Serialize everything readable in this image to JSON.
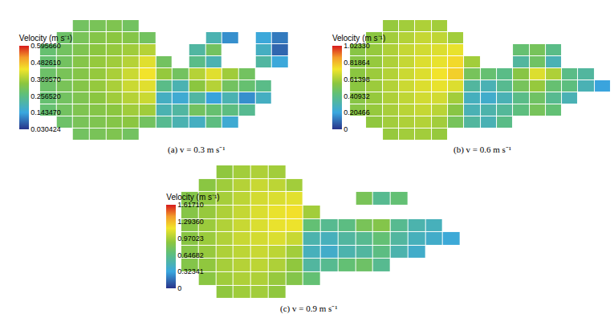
{
  "chart_data": [
    {
      "type": "heatmap",
      "caption": "(a) v = 0.3 m s⁻¹",
      "colorbar_title": "Velocity (m s⁻¹)",
      "zlim": [
        0.030424,
        0.59566
      ],
      "zticks": [
        0.030424,
        {
          "value": 0.14347,
          "label": "0.143470"
        },
        {
          "value": 0.25652,
          "label": "0.256520"
        },
        {
          "value": 0.36957,
          "label": "0.369570"
        },
        {
          "value": 0.48261,
          "label": "0.482610"
        },
        {
          "value": 0.59566,
          "label": "0.595660"
        }
      ],
      "z": [
        [
          null,
          null,
          0.3,
          0.31,
          0.32,
          0.3,
          null,
          null,
          null,
          null,
          null,
          null,
          null,
          null,
          null,
          null
        ],
        [
          null,
          0.29,
          0.31,
          0.33,
          0.34,
          0.33,
          0.3,
          null,
          null,
          null,
          0.2,
          0.12,
          null,
          0.15,
          0.1,
          null
        ],
        [
          0.28,
          0.3,
          0.32,
          0.34,
          0.35,
          0.36,
          0.38,
          null,
          null,
          0.22,
          0.3,
          null,
          null,
          0.18,
          0.08,
          null
        ],
        [
          0.28,
          0.3,
          0.33,
          0.35,
          0.36,
          0.38,
          0.42,
          0.3,
          null,
          0.25,
          0.2,
          null,
          null,
          0.22,
          0.15,
          null
        ],
        [
          0.29,
          0.31,
          0.33,
          0.35,
          0.37,
          0.4,
          0.44,
          0.35,
          0.3,
          0.38,
          0.42,
          0.36,
          0.3,
          null,
          null,
          null
        ],
        [
          0.29,
          0.31,
          0.33,
          0.35,
          0.37,
          0.4,
          0.42,
          0.25,
          0.2,
          0.34,
          0.38,
          0.3,
          0.28,
          0.25,
          null,
          null
        ],
        [
          0.28,
          0.3,
          0.32,
          0.34,
          0.36,
          0.38,
          0.4,
          0.18,
          0.16,
          0.22,
          0.14,
          0.2,
          0.12,
          0.18,
          null,
          null
        ],
        [
          0.28,
          0.3,
          0.32,
          0.33,
          0.34,
          0.36,
          0.36,
          0.2,
          0.22,
          0.3,
          0.28,
          0.26,
          0.24,
          null,
          null,
          null
        ],
        [
          null,
          0.29,
          0.31,
          0.32,
          0.33,
          0.34,
          0.3,
          0.24,
          0.2,
          0.18,
          0.26,
          0.16,
          null,
          null,
          null,
          null
        ],
        [
          null,
          null,
          0.3,
          0.31,
          0.32,
          0.3,
          null,
          null,
          null,
          null,
          null,
          null,
          null,
          null,
          null,
          null
        ]
      ]
    },
    {
      "type": "heatmap",
      "caption": "(b) v = 0.6 m s⁻¹",
      "colorbar_title": "Velocity (m s⁻¹)",
      "zlim": [
        0,
        1.0233
      ],
      "zticks": [
        0,
        0.20466,
        0.40932,
        0.61398,
        0.81864,
        {
          "value": 1.0233,
          "label": "1.02330"
        }
      ],
      "z": [
        [
          null,
          null,
          0.58,
          0.6,
          0.62,
          0.6,
          null,
          null,
          null,
          null,
          null,
          null,
          null,
          null,
          null,
          null
        ],
        [
          null,
          0.56,
          0.6,
          0.63,
          0.66,
          0.65,
          0.6,
          null,
          null,
          null,
          null,
          null,
          null,
          null,
          null,
          null
        ],
        [
          0.55,
          0.58,
          0.62,
          0.66,
          0.68,
          0.7,
          0.72,
          null,
          null,
          null,
          0.45,
          0.5,
          0.4,
          null,
          null,
          null
        ],
        [
          0.55,
          0.58,
          0.62,
          0.66,
          0.7,
          0.72,
          0.76,
          0.6,
          null,
          null,
          0.35,
          0.48,
          0.3,
          null,
          null,
          null
        ],
        [
          0.56,
          0.59,
          0.63,
          0.67,
          0.7,
          0.74,
          0.78,
          0.5,
          0.45,
          0.4,
          0.55,
          0.7,
          0.62,
          0.4,
          0.35,
          null
        ],
        [
          0.56,
          0.59,
          0.63,
          0.67,
          0.7,
          0.72,
          0.7,
          0.35,
          0.3,
          0.38,
          0.5,
          0.58,
          0.45,
          0.42,
          0.3,
          0.2
        ],
        [
          0.55,
          0.58,
          0.62,
          0.65,
          0.68,
          0.68,
          0.6,
          0.28,
          0.25,
          0.3,
          0.4,
          0.48,
          0.38,
          0.3,
          null,
          null
        ],
        [
          0.55,
          0.58,
          0.61,
          0.64,
          0.66,
          0.64,
          0.55,
          0.3,
          0.32,
          0.36,
          0.42,
          0.5,
          0.44,
          null,
          null,
          null
        ],
        [
          null,
          0.57,
          0.6,
          0.62,
          0.63,
          0.6,
          0.5,
          0.35,
          0.3,
          0.4,
          null,
          null,
          null,
          null,
          null,
          null
        ],
        [
          null,
          null,
          0.58,
          0.6,
          0.6,
          0.58,
          null,
          null,
          null,
          null,
          null,
          null,
          null,
          null,
          null,
          null
        ]
      ]
    },
    {
      "type": "heatmap",
      "caption": "(c) v = 0.9 m s⁻¹",
      "colorbar_title": "Velocity (m s⁻¹)",
      "zlim": [
        0,
        1.6171
      ],
      "zticks": [
        0,
        0.32341,
        0.64682,
        0.97023,
        {
          "value": 1.2936,
          "label": "1.29360"
        },
        {
          "value": 1.6171,
          "label": "1.61710"
        }
      ],
      "z": [
        [
          null,
          null,
          0.9,
          0.95,
          0.98,
          0.95,
          null,
          null,
          null,
          null,
          null,
          null,
          null,
          null,
          null,
          null
        ],
        [
          null,
          0.88,
          0.94,
          1.0,
          1.05,
          1.02,
          0.95,
          null,
          null,
          null,
          null,
          null,
          null,
          null,
          null,
          null
        ],
        [
          0.85,
          0.9,
          0.96,
          1.02,
          1.08,
          1.1,
          1.12,
          null,
          null,
          null,
          0.8,
          0.6,
          0.7,
          null,
          null,
          null
        ],
        [
          0.86,
          0.92,
          0.98,
          1.04,
          1.1,
          1.14,
          1.18,
          0.95,
          null,
          null,
          null,
          null,
          null,
          null,
          null,
          null
        ],
        [
          0.87,
          0.93,
          0.99,
          1.05,
          1.1,
          1.14,
          1.15,
          0.7,
          0.6,
          0.65,
          0.8,
          0.85,
          0.6,
          0.5,
          0.45,
          null
        ],
        [
          0.87,
          0.93,
          0.99,
          1.05,
          1.08,
          1.1,
          1.05,
          0.5,
          0.45,
          0.55,
          0.6,
          0.7,
          0.55,
          0.45,
          0.4,
          0.35
        ],
        [
          0.86,
          0.92,
          0.98,
          1.02,
          1.05,
          1.02,
          0.95,
          0.45,
          0.4,
          0.5,
          0.55,
          0.65,
          0.5,
          0.4,
          null,
          null
        ],
        [
          0.85,
          0.9,
          0.96,
          1.0,
          1.02,
          0.98,
          0.9,
          0.55,
          0.6,
          0.7,
          0.75,
          0.6,
          null,
          null,
          null,
          null
        ],
        [
          null,
          0.88,
          0.94,
          0.98,
          0.98,
          0.92,
          0.85,
          0.7,
          null,
          null,
          null,
          null,
          null,
          null,
          null,
          null
        ],
        [
          null,
          null,
          0.9,
          0.94,
          0.95,
          0.9,
          null,
          null,
          null,
          null,
          null,
          null,
          null,
          null,
          null,
          null
        ]
      ]
    }
  ]
}
